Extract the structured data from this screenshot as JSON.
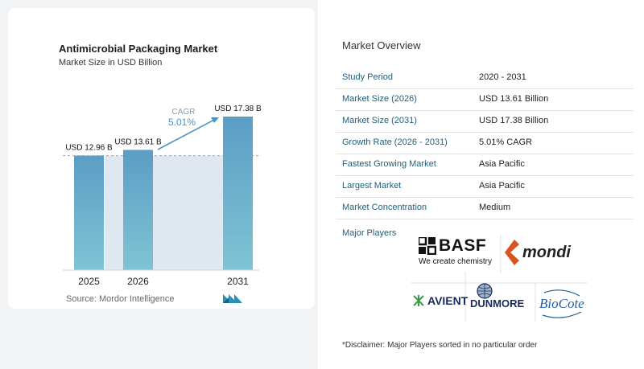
{
  "chart_data": {
    "type": "bar",
    "title": "Antimicrobial Packaging Market",
    "subtitle": "Market Size in USD Billion",
    "categories": [
      "2025",
      "2026",
      "2031"
    ],
    "values": [
      12.96,
      13.61,
      17.38
    ],
    "data_labels": [
      "USD 12.96 B",
      "USD 13.61 B",
      "USD 17.38 B"
    ],
    "cagr_label": "CAGR",
    "cagr_value": "5.01%",
    "bar_color": "#5b9dc5",
    "bar_color_bottom": "#7fc4d4",
    "band_color": "#dfe7f1",
    "arrow_color": "#4a95c5"
  },
  "source": "Source:  Mordor Intelligence",
  "overview": {
    "title": "Market Overview",
    "rows": [
      {
        "label": "Study Period",
        "value": "2020 - 2031"
      },
      {
        "label": "Market Size (2026)",
        "value": "USD 13.61 Billion"
      },
      {
        "label": "Market Size (2031)",
        "value": "USD 17.38 Billion"
      },
      {
        "label": "Growth Rate (2026 - 2031)",
        "value": "5.01% CAGR"
      },
      {
        "label": "Fastest Growing Market",
        "value": "Asia Pacific"
      },
      {
        "label": "Largest Market",
        "value": "Asia Pacific"
      },
      {
        "label": "Market Concentration",
        "value": "Medium"
      }
    ],
    "players_title": "Major Players"
  },
  "players": {
    "basf": {
      "name": "BASF",
      "tagline": "We create chemistry"
    },
    "mondi": {
      "name": "mondi"
    },
    "avient": {
      "name": "AVIENT"
    },
    "dunmore": {
      "name": "DUNMORE"
    },
    "biocote": {
      "name": "BioCote"
    }
  },
  "disclaimer": "*Disclaimer: Major Players sorted in no particular order"
}
